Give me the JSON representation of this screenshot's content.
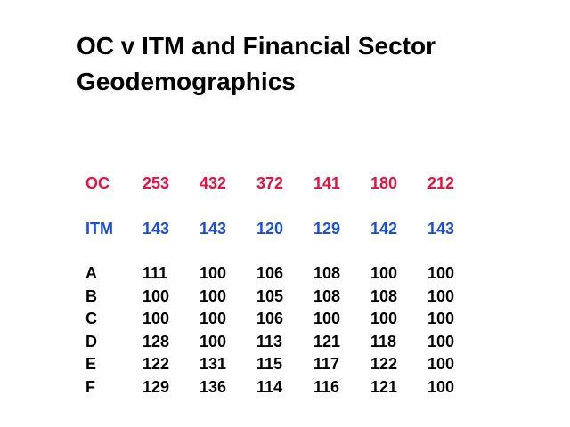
{
  "title": [
    "OC v ITM and Financial Sector",
    "Geodemographics"
  ],
  "table": {
    "rows": [
      {
        "label": "OC",
        "values": [
          253,
          432,
          372,
          141,
          180,
          212
        ]
      },
      {
        "label": "ITM",
        "values": [
          143,
          143,
          120,
          129,
          142,
          143
        ]
      },
      {
        "label": "A",
        "values": [
          111,
          100,
          106,
          108,
          100,
          100
        ]
      },
      {
        "label": "B",
        "values": [
          100,
          100,
          105,
          108,
          108,
          100
        ]
      },
      {
        "label": "C",
        "values": [
          100,
          100,
          106,
          100,
          100,
          100
        ]
      },
      {
        "label": "D",
        "values": [
          128,
          100,
          113,
          121,
          118,
          100
        ]
      },
      {
        "label": "E",
        "values": [
          122,
          131,
          115,
          117,
          122,
          100
        ]
      },
      {
        "label": "F",
        "values": [
          129,
          136,
          114,
          116,
          121,
          100
        ]
      }
    ]
  }
}
